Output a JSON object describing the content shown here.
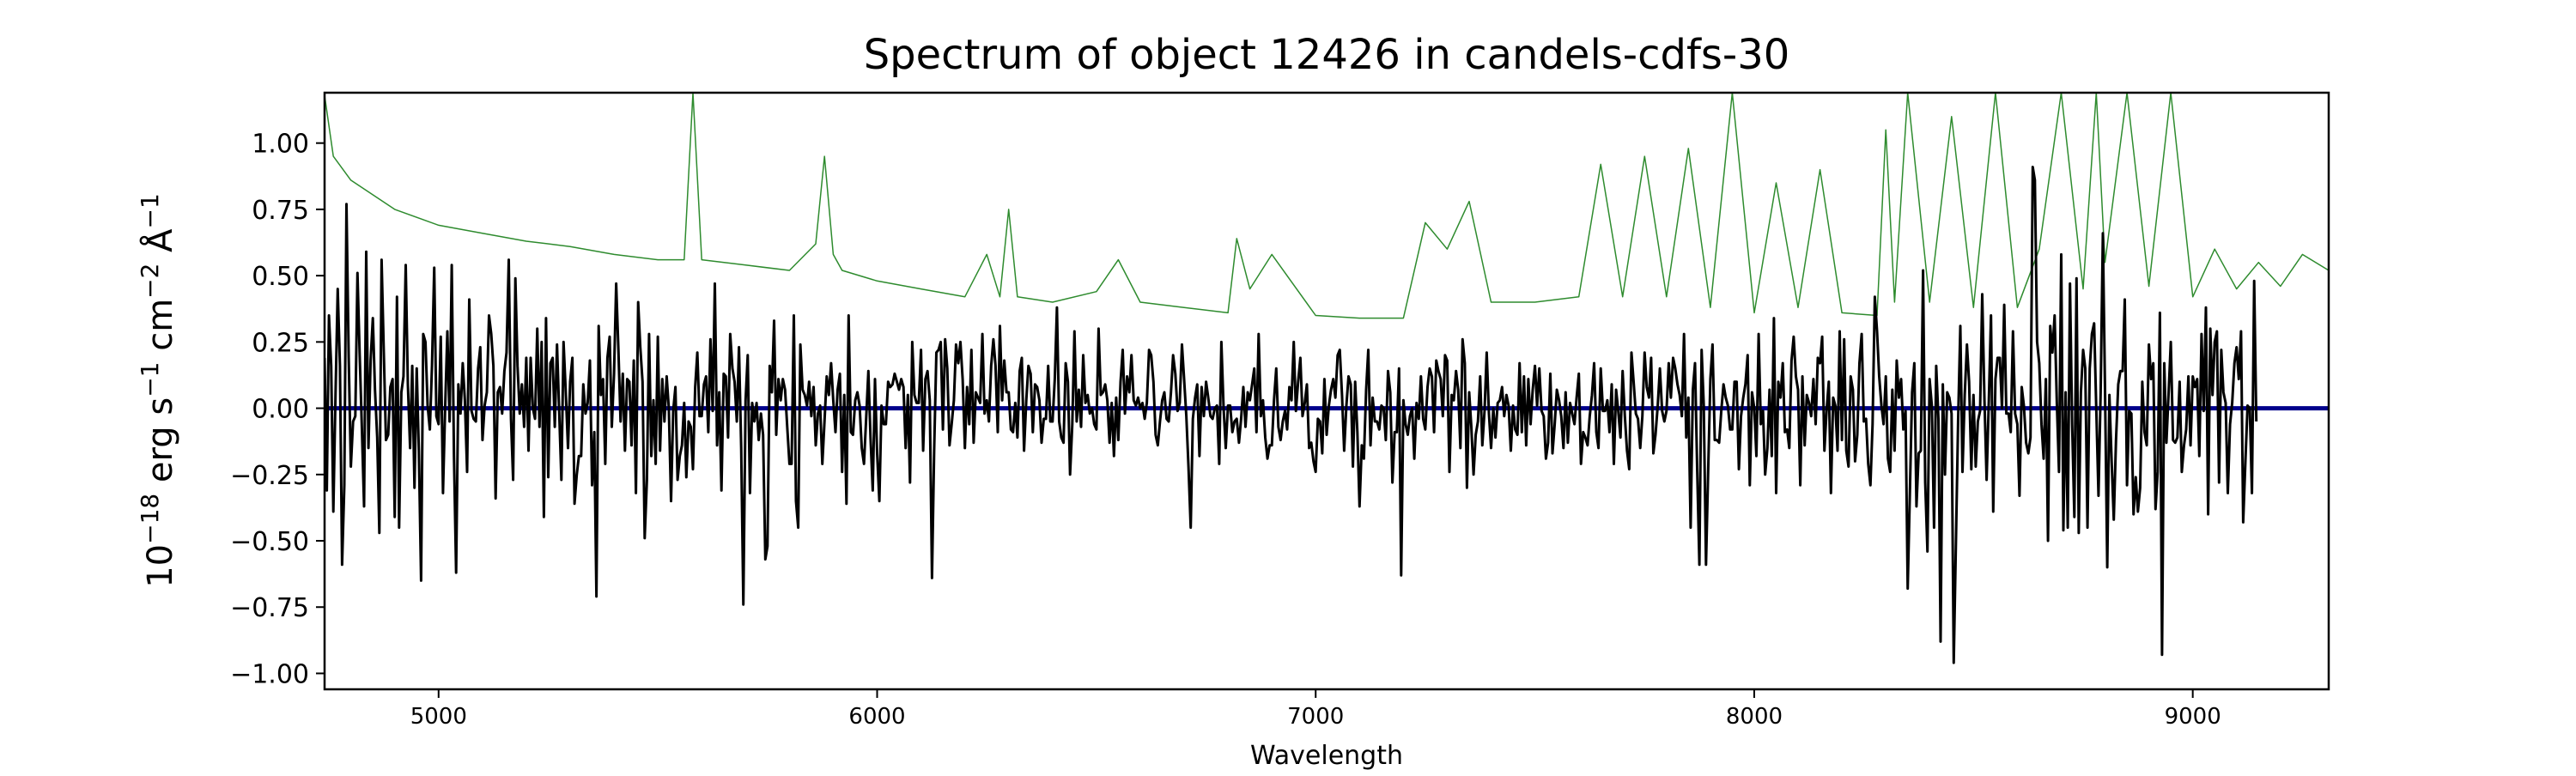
{
  "chart_data": {
    "type": "line",
    "title": "Spectrum of object 12426 in candels-cdfs-30",
    "xlabel": "Wavelength",
    "ylabel_parts": [
      "10",
      "−18",
      " erg s",
      "−1",
      " cm",
      "−2",
      " Å",
      "−1"
    ],
    "xlim": [
      4740,
      9310
    ],
    "ylim": [
      -1.06,
      1.19
    ],
    "x_ticks": [
      5000,
      6000,
      7000,
      8000,
      9000
    ],
    "x_tick_labels": [
      "5000",
      "6000",
      "7000",
      "8000",
      "9000"
    ],
    "y_ticks": [
      -1.0,
      -0.75,
      -0.5,
      -0.25,
      0.0,
      0.25,
      0.5,
      0.75,
      1.0
    ],
    "y_tick_labels": [
      "−1.00",
      "−0.75",
      "−0.50",
      "−0.25",
      "0.00",
      "0.25",
      "0.50",
      "0.75",
      "1.00"
    ],
    "grid": false,
    "legend": "none",
    "series": [
      {
        "role": "error",
        "color": "#2e8b2e",
        "x": [
          4740,
          4760,
          4800,
          4900,
          5000,
          5100,
          5200,
          5300,
          5400,
          5500,
          5560,
          5580,
          5600,
          5700,
          5800,
          5860,
          5880,
          5900,
          5920,
          6000,
          6100,
          6200,
          6250,
          6280,
          6300,
          6320,
          6400,
          6500,
          6550,
          6600,
          6700,
          6800,
          6820,
          6850,
          6900,
          7000,
          7100,
          7200,
          7250,
          7300,
          7350,
          7400,
          7500,
          7600,
          7650,
          7700,
          7750,
          7800,
          7850,
          7900,
          7950,
          8000,
          8050,
          8100,
          8150,
          8200,
          8280,
          8300,
          8320,
          8350,
          8400,
          8450,
          8500,
          8550,
          8600,
          8650,
          8700,
          8750,
          8780,
          8800,
          8850,
          8900,
          8950,
          9000,
          9050,
          9100,
          9150,
          9200,
          9250,
          9310
        ],
        "y": [
          1.18,
          0.95,
          0.86,
          0.75,
          0.69,
          0.66,
          0.63,
          0.61,
          0.58,
          0.56,
          0.56,
          1.19,
          0.56,
          0.54,
          0.52,
          0.62,
          0.95,
          0.58,
          0.52,
          0.48,
          0.45,
          0.42,
          0.58,
          0.42,
          0.75,
          0.42,
          0.4,
          0.44,
          0.56,
          0.4,
          0.38,
          0.36,
          0.64,
          0.45,
          0.58,
          0.35,
          0.34,
          0.34,
          0.7,
          0.6,
          0.78,
          0.4,
          0.4,
          0.42,
          0.92,
          0.42,
          0.95,
          0.42,
          0.98,
          0.38,
          1.19,
          0.36,
          0.85,
          0.38,
          0.9,
          0.36,
          0.35,
          1.05,
          0.4,
          1.19,
          0.4,
          1.1,
          0.38,
          1.19,
          0.38,
          0.6,
          1.19,
          0.45,
          1.19,
          0.55,
          1.19,
          0.46,
          1.19,
          0.42,
          0.6,
          0.45,
          0.55,
          0.46,
          0.58,
          0.52
        ]
      },
      {
        "role": "model",
        "color": "#00008b",
        "x": [
          4740,
          9310
        ],
        "y": [
          0.0,
          0.0
        ]
      },
      {
        "role": "flux",
        "color": "#000000",
        "x_start": 4740,
        "x_step": 5,
        "y": [
          0.19,
          -0.31,
          0.35,
          0.16,
          -0.39,
          0.06,
          0.45,
          0.16,
          -0.59,
          -0.29,
          0.77,
          0.19,
          -0.22,
          -0.05,
          -0.03,
          0.51,
          0.2,
          -0.07,
          -0.37,
          0.59,
          -0.15,
          0.18,
          0.34,
          0.07,
          -0.11,
          -0.47,
          0.56,
          0.22,
          -0.12,
          -0.1,
          0.08,
          0.11,
          -0.41,
          0.42,
          -0.45,
          0.06,
          0.12,
          0.54,
          0.09,
          -0.15,
          0.16,
          -0.3,
          0.15,
          -0.16,
          -0.65,
          0.28,
          0.25,
          0.01,
          -0.08,
          0.16,
          0.53,
          -0.03,
          -0.06,
          0.27,
          -0.32,
          -0.0,
          0.29,
          -0.05,
          0.54,
          -0.18,
          -0.62,
          0.09,
          -0.02,
          0.17,
          0.03,
          -0.24,
          0.41,
          -0.01,
          -0.04,
          -0.05,
          0.15,
          0.23,
          -0.12,
          0.01,
          0.06,
          0.35,
          0.28,
          0.16,
          -0.34,
          0.06,
          0.08,
          -0.02,
          0.14,
          0.21,
          0.56,
          -0.04,
          -0.27,
          0.49,
          0.16,
          -0.02,
          0.09,
          -0.07,
          0.19,
          -0.16,
          0.19,
          -0.0,
          -0.04,
          0.3,
          -0.07,
          0.25,
          -0.41,
          0.34,
          -0.26,
          0.17,
          0.19,
          -0.07,
          0.24,
          -0.01,
          -0.27,
          0.25,
          0.06,
          -0.15,
          0.1,
          0.19,
          -0.36,
          -0.25,
          -0.18,
          -0.18,
          0.09,
          -0.02,
          0.02,
          0.18,
          -0.29,
          -0.09,
          -0.71,
          0.31,
          0.05,
          0.11,
          -0.21,
          0.19,
          0.27,
          -0.07,
          0.13,
          0.47,
          0.22,
          -0.05,
          0.13,
          -0.16,
          0.11,
          0.1,
          -0.14,
          0.18,
          -0.32,
          0.4,
          0.23,
          0.1,
          -0.49,
          -0.27,
          0.28,
          -0.18,
          0.03,
          -0.21,
          0.27,
          -0.16,
          0.11,
          -0.05,
          0.12,
          -0.0,
          -0.35,
          -0.01,
          0.08,
          -0.27,
          -0.18,
          -0.14,
          0.02,
          -0.26,
          -0.05,
          -0.07,
          -0.23,
          0.08,
          0.21,
          -0.03,
          -0.03,
          0.09,
          0.12,
          -0.09,
          0.26,
          -0.01,
          0.47,
          -0.14,
          0.06,
          -0.31,
          0.13,
          0.12,
          -0.11,
          0.28,
          0.15,
          0.1,
          -0.05,
          0.23,
          -0.15,
          -0.74,
          0.03,
          0.2,
          -0.32,
          0.02,
          -0.05,
          0.02,
          -0.12,
          -0.02,
          -0.1,
          -0.57,
          -0.52,
          0.16,
          0.06,
          0.33,
          -0.1,
          0.11,
          0.03,
          0.11,
          0.07,
          -0.07,
          -0.21,
          -0.21,
          0.35,
          -0.35,
          -0.45,
          0.24,
          0.07,
          0.05,
          0.01,
          0.1,
          -0.03,
          0.08,
          -0.14,
          -0.02,
          0.01,
          -0.21,
          -0.05,
          0.12,
          0.05,
          0.17,
          0.03,
          -0.09,
          0.07,
          0.13,
          -0.24,
          0.05,
          -0.36,
          0.35,
          -0.09,
          -0.1,
          0.03,
          0.06,
          0.01,
          -0.15,
          -0.21,
          -0.04,
          0.14,
          -0.11,
          -0.31,
          0.11,
          -0.17,
          -0.35,
          0.01,
          -0.06,
          -0.06,
          0.1,
          0.08,
          0.09,
          0.13,
          0.1,
          0.07,
          0.11,
          0.08,
          -0.15,
          0.05,
          -0.28,
          0.25,
          0.05,
          0.02,
          0.02,
          0.22,
          -0.16,
          0.11,
          0.14,
          0.03,
          -0.64,
          -0.16,
          0.21,
          0.22,
          0.25,
          -0.08,
          0.26,
          0.15,
          -0.14,
          -0.06,
          0.03,
          0.24,
          0.17,
          0.25,
          0.11,
          -0.15,
          0.08,
          -0.06,
          0.22,
          -0.13,
          0.06,
          0.04,
          0.02,
          0.28,
          -0.02,
          0.03,
          -0.05,
          0.16,
          0.26,
          0.16,
          -0.09,
          0.31,
          0.03,
          0.18,
          0.06,
          0.06,
          -0.08,
          -0.09,
          0.02,
          -0.11,
          0.14,
          0.19,
          -0.16,
          0.03,
          0.16,
          0.13,
          -0.09,
          0.09,
          0.08,
          0.03,
          -0.13,
          -0.04,
          -0.04,
          0.16,
          -0.05,
          -0.05,
          0.11,
          0.38,
          -0.05,
          -0.11,
          -0.13,
          0.17,
          0.1,
          -0.25,
          -0.06,
          0.29,
          -0.05,
          0.07,
          -0.07,
          0.2,
          0.02,
          0.05,
          -0.02,
          -0.0,
          -0.06,
          -0.08,
          0.3,
          0.05,
          0.06,
          0.09,
          0.03,
          -0.13,
          0.02,
          -0.18,
          0.04,
          -0.12,
          0.1,
          0.22,
          -0.02,
          0.12,
          0.06,
          0.2,
          0.03,
          0.01,
          0.04,
          0.0,
          0.02,
          -0.04,
          0.02,
          0.22,
          0.2,
          0.1,
          -0.1,
          -0.14,
          -0.05,
          0.03,
          0.06,
          -0.04,
          -0.05,
          0.06,
          0.2,
          0.13,
          -0.01,
          0.02,
          0.24,
          0.11,
          -0.03,
          -0.22,
          -0.45,
          -0.04,
          0.04,
          0.09,
          -0.18,
          0.08,
          -0.03,
          0.1,
          0.04,
          -0.03,
          -0.04,
          0.0,
          0.01,
          -0.21,
          0.25,
          0.0,
          -0.15,
          0.01,
          0.01,
          -0.09,
          -0.05,
          -0.04,
          -0.13,
          -0.04,
          0.08,
          -0.07,
          0.06,
          0.03,
          0.09,
          0.15,
          -0.09,
          0.28,
          -0.03,
          0.03,
          -0.11,
          -0.19,
          -0.14,
          -0.14,
          0.03,
          0.15,
          -0.07,
          -0.12,
          -0.05,
          -0.01,
          -0.08,
          0.08,
          0.03,
          0.25,
          -0.01,
          0.1,
          0.19,
          -0.03,
          0.02,
          0.09,
          -0.15,
          -0.13,
          -0.2,
          -0.24,
          -0.04,
          -0.05,
          -0.17,
          0.11,
          -0.1,
          0.01,
          0.07,
          0.11,
          0.04,
          0.2,
          0.22,
          0.05,
          -0.16,
          0.01,
          0.12,
          0.09,
          -0.22,
          0.1,
          -0.09,
          -0.37,
          -0.14,
          -0.19,
          0.07,
          0.22,
          -0.14,
          0.04,
          -0.05,
          -0.05,
          -0.08,
          0.01,
          0.0,
          -0.12,
          0.14,
          0.06,
          -0.28,
          -0.09,
          -0.09,
          0.15,
          -0.63,
          0.03,
          -0.06,
          -0.1,
          -0.03,
          0.0,
          -0.19,
          0.02,
          -0.04,
          0.12,
          -0.04,
          -0.08,
          0.08,
          0.15,
          0.12,
          -0.09,
          0.18,
          0.14,
          0.11,
          -0.03,
          0.2,
          0.18,
          -0.24,
          0.05,
          0.03,
          0.14,
          0.07,
          -0.15,
          0.26,
          0.17,
          -0.3,
          0.06,
          -0.07,
          -0.25,
          -0.1,
          -0.05,
          0.12,
          -0.14,
          -0.01,
          0.21,
          -0.02,
          -0.15,
          0.0,
          -0.11,
          0.02,
          0.03,
          0.08,
          -0.03,
          0.05,
          0.01,
          -0.16,
          0.01,
          -0.08,
          -0.1,
          0.17,
          -0.09,
          0.12,
          -0.14,
          0.11,
          -0.06,
          0.07,
          0.16,
          0.01,
          0.15,
          -0.01,
          -0.03,
          -0.19,
          -0.13,
          0.13,
          -0.17,
          -0.06,
          0.07,
          0.03,
          -0.03,
          -0.15,
          0.06,
          -0.13,
          0.02,
          -0.02,
          -0.06,
          0.04,
          0.13,
          -0.21,
          -0.09,
          -0.11,
          -0.14,
          -0.03,
          0.05,
          0.17,
          -0.09,
          -0.15,
          0.15,
          -0.01,
          -0.01,
          0.03,
          -0.09,
          0.09,
          -0.21,
          0.07,
          -0.01,
          -0.11,
          0.14,
          -0.03,
          -0.16,
          -0.23,
          0.21,
          0.1,
          -0.02,
          -0.04,
          -0.15,
          -0.03,
          0.21,
          0.08,
          0.04,
          0.19,
          -0.17,
          -0.1,
          0.01,
          0.15,
          -0.01,
          -0.05,
          -0.01,
          0.17,
          0.04,
          0.19,
          0.15,
          0.09,
          0.05,
          -0.03,
          0.28,
          -0.11,
          0.04,
          -0.45,
          0.07,
          0.17,
          -0.24,
          -0.59,
          0.22,
          0.01,
          -0.59,
          -0.24,
          0.11,
          0.24,
          -0.12,
          -0.12,
          -0.13,
          -0.01,
          0.09,
          0.04,
          0.01,
          -0.08,
          -0.08,
          0.1,
          0.1,
          -0.23,
          -0.03,
          0.04,
          0.09,
          0.2,
          -0.29,
          0.06,
          -0.0,
          -0.18,
          0.28,
          -0.06,
          -0.01,
          -0.25,
          -0.15,
          0.07,
          -0.18,
          0.34,
          -0.32,
          0.1,
          0.04,
          0.17,
          -0.09,
          -0.08,
          -0.15,
          0.18,
          0.27,
          0.12,
          0.07,
          -0.29,
          0.12,
          -0.14,
          0.05,
          0.02,
          -0.03,
          0.11,
          -0.06,
          0.19,
          0.17,
          0.27,
          -0.16,
          -0.01,
          0.1,
          -0.32,
          0.04,
          0.01,
          -0.16,
          0.29,
          -0.12,
          0.26,
          -0.16,
          -0.22,
          0.12,
          0.07,
          -0.2,
          -0.1,
          0.17,
          0.28,
          -0.05,
          -0.04,
          -0.21,
          -0.29,
          -0.06,
          0.42,
          0.29,
          0.12,
          0.01,
          -0.06,
          0.12,
          -0.19,
          -0.24,
          0.07,
          -0.16,
          0.18,
          0.04,
          0.11,
          -0.08,
          -0.01,
          -0.68,
          -0.31,
          0.06,
          0.17,
          -0.37,
          -0.17,
          -0.16,
          0.52,
          -0.28,
          -0.54,
          0.11,
          0.01,
          -0.45,
          0.16,
          -0.04,
          -0.88,
          0.09,
          -0.25,
          0.06,
          0.04,
          -0.02,
          -0.96,
          -0.5,
          -0.05,
          0.31,
          -0.24,
          0.05,
          0.24,
          0.1,
          -0.23,
          0.05,
          -0.22,
          -0.05,
          -0.01,
          0.43,
          0.03,
          -0.27,
          0.03,
          0.35,
          -0.39,
          0.11,
          0.19,
          0.19,
          -0.0,
          0.39,
          -0.02,
          -0.02,
          -0.09,
          0.29,
          -0.02,
          -0.06,
          -0.33,
          0.08,
          0.01,
          -0.13,
          -0.17,
          -0.11,
          0.91,
          0.86,
          0.25,
          0.17,
          -0.06,
          -0.19,
          0.11,
          -0.5,
          0.31,
          0.21,
          0.35,
          0.02,
          -0.24,
          0.58,
          -0.46,
          0.06,
          -0.45,
          0.47,
          -0.06,
          -0.41,
          0.49,
          -0.47,
          0.06,
          0.22,
          0.15,
          -0.45,
          0.15,
          0.28,
          0.32,
          0.0,
          -0.33,
          0.06,
          0.66,
          0.07,
          -0.6,
          0.05,
          -0.2,
          -0.42,
          -0.12,
          0.09,
          0.14,
          0.14,
          0.41,
          -0.29,
          -0.01,
          -0.02,
          -0.4,
          -0.26,
          -0.39,
          -0.3,
          0.1,
          -0.09,
          -0.14,
          0.24,
          0.11,
          0.17,
          -0.38,
          -0.24,
          0.36,
          -0.93,
          0.17,
          -0.13,
          0.06,
          0.25,
          -0.12,
          -0.13,
          -0.11,
          0.1,
          -0.24,
          -0.14,
          -0.08,
          0.12,
          -0.14,
          0.12,
          0.08,
          0.11,
          -0.18,
          0.28,
          -0.01,
          0.38,
          -0.4,
          0.3,
          0.05,
          0.25,
          0.29,
          -0.28,
          0.22,
          0.06,
          0.02,
          -0.32,
          -0.06,
          0.02,
          0.17,
          0.23,
          0.11,
          0.29,
          -0.43,
          -0.2,
          0.01,
          0.0,
          -0.32,
          0.48,
          -0.05
        ]
      }
    ]
  }
}
